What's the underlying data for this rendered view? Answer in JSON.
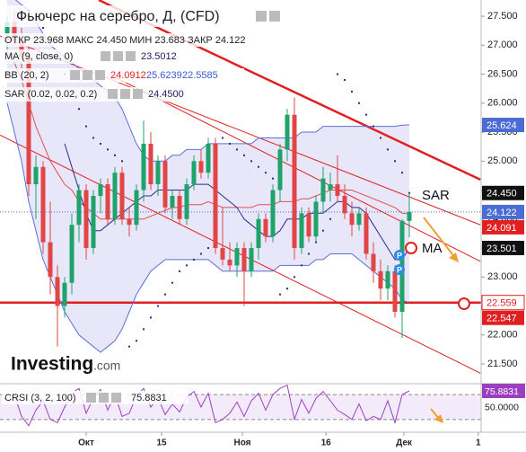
{
  "header": {
    "title": "Фьючерс на серебро, Д, (CFD)",
    "ohlc": "ОТКР 23.968 МАКС 24.450 МИН 23.683 ЗАКР 24.122",
    "indicators": [
      {
        "name": "MA (9, close, 0)",
        "values": [
          "23.5012"
        ],
        "colors": [
          "#1d1d6b"
        ]
      },
      {
        "name": "BB (20, 2)",
        "values": [
          "24.0912",
          "25.6239",
          "22.5585"
        ],
        "colors": [
          "#e02020",
          "#3a5bd0",
          "#3a5bd0"
        ]
      },
      {
        "name": "SAR (0.02, 0.02, 0.2)",
        "values": [
          "24.4500"
        ],
        "colors": [
          "#1d1d6b"
        ]
      }
    ]
  },
  "logo": {
    "brand": "Investing",
    "suffix": ".com"
  },
  "annotations": [
    "SAR",
    "MA"
  ],
  "markers": [
    "P",
    "P"
  ],
  "chart_data": [
    {
      "type": "candlestick",
      "up_color": "#1fa36b",
      "down_color": "#e14545",
      "open": [
        27.2,
        27.4,
        27.1,
        26.8,
        24.6,
        24.9,
        23.6,
        23.0,
        22.5,
        22.9,
        23.9,
        24.5,
        23.5,
        24.4,
        24.6,
        24.0,
        24.8,
        24.0,
        23.9,
        24.5,
        25.3,
        24.6,
        25.0,
        24.2,
        24.4,
        24.0,
        24.6,
        25.0,
        24.8,
        25.3,
        23.5,
        23.3,
        23.2,
        23.5,
        23.1,
        23.5,
        24.0,
        23.7,
        24.5,
        25.2,
        25.8,
        23.5,
        24.1,
        23.7,
        24.3,
        24.5,
        24.6,
        24.4,
        24.1,
        23.9,
        24.1,
        23.4,
        23.1,
        22.8,
        23.1,
        22.4,
        23.968
      ],
      "high": [
        27.5,
        27.6,
        27.3,
        27.0,
        25.1,
        25.0,
        24.3,
        23.2,
        23.0,
        24.1,
        24.6,
        24.6,
        24.5,
        24.7,
        24.7,
        24.9,
        24.9,
        24.2,
        24.6,
        25.7,
        25.5,
        25.1,
        25.1,
        24.5,
        24.5,
        24.7,
        25.1,
        25.2,
        25.4,
        25.4,
        24.2,
        23.6,
        23.6,
        23.6,
        23.6,
        24.1,
        24.1,
        24.6,
        25.3,
        25.9,
        26.1,
        24.2,
        24.2,
        24.4,
        24.9,
        24.8,
        25.1,
        24.6,
        24.3,
        24.2,
        24.2,
        23.6,
        23.3,
        23.2,
        23.2,
        24.0,
        24.45
      ],
      "low": [
        26.9,
        27.0,
        26.6,
        24.4,
        24.0,
        23.4,
        22.7,
        21.8,
        22.3,
        22.7,
        23.6,
        23.3,
        23.4,
        24.1,
        23.9,
        23.9,
        23.9,
        23.7,
        23.8,
        24.3,
        24.5,
        24.4,
        24.1,
        24.0,
        23.9,
        23.9,
        24.5,
        24.7,
        24.7,
        23.4,
        23.2,
        23.1,
        23.0,
        22.5,
        23.0,
        23.3,
        23.6,
        23.6,
        24.3,
        25.0,
        23.3,
        23.4,
        23.6,
        23.6,
        24.1,
        24.3,
        24.3,
        24.0,
        23.7,
        23.8,
        23.3,
        22.9,
        22.6,
        22.6,
        22.3,
        21.95,
        23.683
      ],
      "close": [
        27.4,
        27.1,
        26.8,
        24.6,
        24.9,
        23.6,
        23.0,
        22.5,
        22.9,
        23.9,
        24.5,
        23.5,
        24.4,
        24.6,
        24.0,
        24.8,
        24.0,
        23.9,
        24.5,
        25.3,
        24.6,
        25.0,
        24.2,
        24.4,
        24.0,
        24.6,
        25.0,
        24.8,
        25.3,
        23.5,
        23.3,
        23.2,
        23.5,
        23.1,
        23.5,
        24.0,
        23.7,
        24.5,
        25.2,
        25.8,
        23.5,
        24.1,
        23.7,
        24.3,
        24.7,
        24.6,
        24.4,
        24.1,
        23.9,
        24.1,
        23.4,
        23.1,
        22.8,
        23.1,
        22.4,
        23.97,
        24.122
      ],
      "bb": {
        "color": "#5b6fd6",
        "middle_color": "#e05050",
        "fill": "rgba(120,120,220,0.18)",
        "upper": [
          27.8,
          27.8,
          27.7,
          27.6,
          27.4,
          27.2,
          27.0,
          26.9,
          26.8,
          26.7,
          26.6,
          26.5,
          26.4,
          26.3,
          26.2,
          26.1,
          25.9,
          25.6,
          25.3,
          25.1,
          25.0,
          25.0,
          25.0,
          25.1,
          25.1,
          25.2,
          25.2,
          25.2,
          25.3,
          25.3,
          25.3,
          25.3,
          25.3,
          25.3,
          25.3,
          25.4,
          25.4,
          25.4,
          25.4,
          25.4,
          25.4,
          25.5,
          25.5,
          25.5,
          25.6,
          25.6,
          25.6,
          25.6,
          25.6,
          25.6,
          25.6,
          25.6,
          25.6,
          25.6,
          25.6,
          25.62,
          25.624
        ],
        "middle": [
          26.9,
          26.7,
          26.4,
          26.0,
          25.6,
          25.3,
          25.0,
          24.8,
          24.6,
          24.5,
          24.3,
          24.2,
          24.1,
          24.0,
          24.0,
          24.0,
          24.0,
          24.0,
          24.0,
          24.0,
          24.05,
          24.1,
          24.15,
          24.2,
          24.2,
          24.25,
          24.25,
          24.25,
          24.3,
          24.25,
          24.2,
          24.2,
          24.2,
          24.2,
          24.2,
          24.25,
          24.25,
          24.25,
          24.3,
          24.3,
          24.3,
          24.35,
          24.35,
          24.4,
          24.45,
          24.5,
          24.5,
          24.5,
          24.5,
          24.45,
          24.4,
          24.35,
          24.3,
          24.25,
          24.2,
          24.1,
          24.091
        ],
        "lower": [
          26.0,
          25.5,
          25.0,
          24.3,
          23.8,
          23.3,
          23.0,
          22.7,
          22.4,
          22.2,
          22.0,
          21.9,
          21.8,
          21.7,
          21.8,
          21.9,
          22.1,
          22.4,
          22.7,
          22.9,
          23.1,
          23.2,
          23.3,
          23.3,
          23.3,
          23.3,
          23.3,
          23.3,
          23.3,
          23.2,
          23.1,
          23.1,
          23.1,
          23.1,
          23.1,
          23.1,
          23.1,
          23.1,
          23.2,
          23.2,
          23.2,
          23.2,
          23.2,
          23.3,
          23.3,
          23.4,
          23.4,
          23.4,
          23.4,
          23.3,
          23.2,
          23.1,
          23.0,
          22.9,
          22.8,
          22.6,
          22.559
        ]
      },
      "ma": {
        "color": "#2b2b8a",
        "values": [
          null,
          null,
          null,
          null,
          null,
          null,
          null,
          null,
          25.3,
          24.9,
          24.5,
          24.1,
          23.8,
          23.8,
          23.9,
          24.0,
          24.1,
          24.2,
          24.3,
          24.4,
          24.4,
          24.5,
          24.5,
          24.5,
          24.5,
          24.5,
          24.6,
          24.6,
          24.6,
          24.5,
          24.4,
          24.3,
          24.2,
          24.0,
          23.9,
          23.8,
          23.7,
          23.7,
          23.8,
          24.0,
          24.0,
          24.0,
          24.1,
          24.1,
          24.1,
          24.2,
          24.3,
          24.3,
          24.2,
          24.2,
          24.1,
          23.9,
          23.7,
          23.5,
          23.3,
          23.3,
          23.501
        ]
      },
      "sar": {
        "color": "#2b2b8a",
        "values": [
          26.5,
          26.7,
          26.9,
          27.6,
          27.5,
          27.3,
          27.1,
          26.8,
          26.5,
          26.2,
          25.9,
          25.6,
          25.4,
          25.3,
          25.2,
          25.1,
          25.0,
          21.8,
          21.9,
          22.1,
          22.3,
          22.5,
          22.7,
          22.9,
          23.1,
          23.2,
          23.3,
          23.4,
          23.5,
          23.6,
          25.4,
          25.3,
          25.2,
          25.1,
          25.0,
          24.9,
          24.8,
          24.7,
          22.7,
          22.8,
          23.0,
          23.2,
          23.4,
          23.6,
          23.8,
          24.0,
          26.5,
          26.4,
          26.2,
          26.0,
          25.8,
          25.6,
          25.4,
          25.2,
          25.0,
          24.8,
          24.45
        ]
      },
      "trendlines": [
        {
          "points": [
            [
              12.75,
              27.78
            ],
            [
              65.9,
              24.68
            ]
          ],
          "color": "#e02020",
          "width": 2.5
        },
        {
          "points": [
            [
              -1,
              27.16
            ],
            [
              65.9,
              23.9
            ]
          ],
          "color": "#e02020",
          "width": 1
        },
        {
          "points": [
            [
              -1,
              25.45
            ],
            [
              65.9,
              21.34
            ]
          ],
          "color": "#e02020",
          "width": 1
        },
        {
          "points": [
            [
              15,
              26.45
            ],
            [
              65.9,
              23.27
            ]
          ],
          "color": "#e02020",
          "width": 1
        }
      ],
      "hline": {
        "value": 22.559,
        "color": "#e02020"
      },
      "price_labels": [
        {
          "value": 25.624,
          "color": "#4a6cd4",
          "text_color": "#fff"
        },
        {
          "value": 24.45,
          "label": "24.450",
          "color": "#111",
          "text_color": "#fff"
        },
        {
          "value": 24.122,
          "color": "#4a6cd4",
          "text_color": "#fff",
          "dotted": true
        },
        {
          "value": 24.091,
          "color": "#e02020",
          "text_color": "#fff"
        },
        {
          "value": 23.501,
          "color": "#111",
          "text_color": "#fff"
        },
        {
          "value": 22.559,
          "color": "#fff",
          "text_color": "#e02020",
          "border": "#e02020"
        },
        {
          "value": 22.547,
          "color": "#e02020",
          "text_color": "#fff"
        }
      ],
      "xlim": [
        -1,
        66
      ],
      "ylim": [
        21.19,
        27.78
      ],
      "yticks": [
        {
          "value": 27.5,
          "label": "27.500"
        },
        {
          "value": 27.0,
          "label": "27.000"
        },
        {
          "value": 26.5,
          "label": "26.500"
        },
        {
          "value": 26.0,
          "label": "26.000"
        },
        {
          "value": 25.5,
          "label": "25.500"
        },
        {
          "value": 25.0,
          "label": "25.000"
        },
        {
          "value": 24.5,
          "label": "24.500"
        },
        {
          "value": 24.0,
          "label": "24.000"
        },
        {
          "value": 23.5,
          "label": "23.500"
        },
        {
          "value": 23.0,
          "label": "23.000"
        },
        {
          "value": 22.5,
          "label": "22.500"
        },
        {
          "value": 22.0,
          "label": "22.000"
        },
        {
          "value": 21.5,
          "label": "21.500"
        }
      ],
      "xticks": [
        {
          "value": 11,
          "label": "Окт"
        },
        {
          "value": 21.5,
          "label": "15"
        },
        {
          "value": 32.75,
          "label": "Ноя"
        },
        {
          "value": 44.4,
          "label": "16"
        },
        {
          "value": 55.25,
          "label": "Дек"
        },
        {
          "value": 65.6,
          "label": "1"
        }
      ]
    },
    {
      "type": "line",
      "title": "CRSI (3, 2, 100)",
      "color": "#9b3fc0",
      "band_fill": "rgba(180,120,220,0.15)",
      "values": [
        55,
        70,
        35,
        20,
        45,
        60,
        30,
        25,
        50,
        72,
        80,
        40,
        65,
        78,
        45,
        70,
        35,
        40,
        68,
        80,
        50,
        65,
        38,
        55,
        42,
        66,
        75,
        50,
        72,
        25,
        30,
        40,
        58,
        35,
        60,
        72,
        45,
        70,
        80,
        85,
        30,
        62,
        40,
        64,
        75,
        60,
        45,
        38,
        30,
        55,
        28,
        35,
        30,
        60,
        25,
        70,
        75.8831
      ],
      "levels": [
        70,
        30
      ],
      "ylim": [
        11,
        86
      ],
      "yticks": [
        75.8831,
        {
          "value": 50,
          "label": "50.0000"
        }
      ]
    }
  ]
}
